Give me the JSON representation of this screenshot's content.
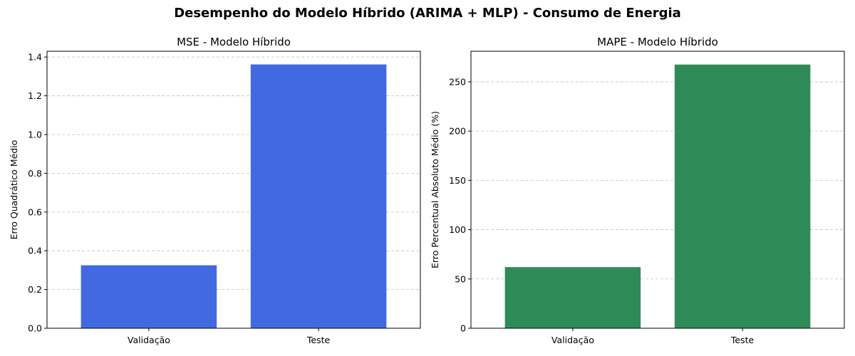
{
  "figure": {
    "title": "Desempenho do Modelo Híbrido (ARIMA + MLP) - Consumo de Energia"
  },
  "chart_data": [
    {
      "type": "bar",
      "title": "MSE - Modelo Híbrido",
      "xlabel": "",
      "ylabel": "Erro Quadrático Médio",
      "categories": [
        "Validação",
        "Teste"
      ],
      "values": [
        0.325,
        1.362
      ],
      "ylim": [
        0,
        1.43
      ],
      "yticks": [
        0.0,
        0.2,
        0.4,
        0.6,
        0.8,
        1.0,
        1.2,
        1.4
      ],
      "ytick_labels": [
        "0.0",
        "0.2",
        "0.4",
        "0.6",
        "0.8",
        "1.0",
        "1.2",
        "1.4"
      ],
      "grid": "y-dashed",
      "color": "#4169e1"
    },
    {
      "type": "bar",
      "title": "MAPE - Modelo Híbrido",
      "xlabel": "",
      "ylabel": "Erro Percentual Absoluto Médio (%)",
      "categories": [
        "Validação",
        "Teste"
      ],
      "values": [
        62.0,
        267.5
      ],
      "ylim": [
        0,
        281
      ],
      "yticks": [
        0,
        50,
        100,
        150,
        200,
        250
      ],
      "ytick_labels": [
        "0",
        "50",
        "100",
        "150",
        "200",
        "250"
      ],
      "grid": "y-dashed",
      "color": "#2e8b57"
    }
  ]
}
